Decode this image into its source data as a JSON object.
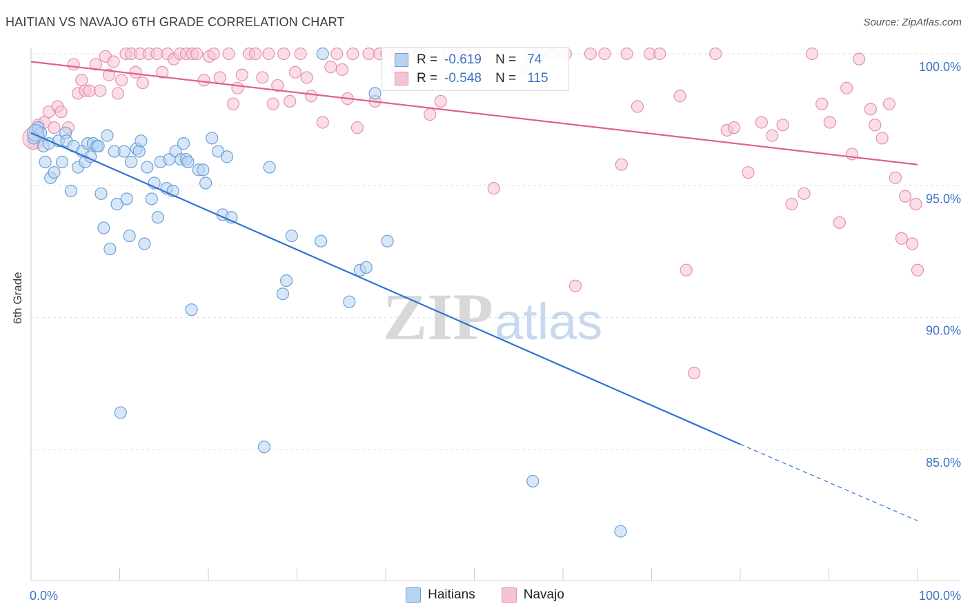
{
  "title": "HAITIAN VS NAVAJO 6TH GRADE CORRELATION CHART",
  "source": "Source: ZipAtlas.com",
  "watermark": {
    "zip": "ZIP",
    "atlas": "atlas"
  },
  "colors": {
    "haitians_fill": "#b8d3f2",
    "haitians_stroke": "#6b9fd8",
    "haitians_line": "#2e72d2",
    "navajo_fill": "#f6c3d3",
    "navajo_stroke": "#e590ad",
    "navajo_line": "#e0608c",
    "tick_text": "#3a72c4",
    "grid": "#e0e0e0"
  },
  "legend": {
    "rows": [
      {
        "label": "R =",
        "r": "-0.619",
        "n_label": "N =",
        "n": "74"
      },
      {
        "label": "R =",
        "r": "-0.548",
        "n_label": "N =",
        "n": "115"
      }
    ]
  },
  "bottom_legend": [
    "Haitians",
    "Navajo"
  ],
  "chart_data": {
    "type": "scatter",
    "xlabel": "",
    "ylabel": "6th Grade",
    "x_ticks": [
      "0.0%",
      "100.0%"
    ],
    "y_ticks": [
      "100.0%",
      "95.0%",
      "90.0%",
      "85.0%"
    ],
    "xlim": [
      0,
      100
    ],
    "ylim": [
      80.7,
      100.3
    ],
    "grid": true,
    "series": [
      {
        "name": "Haitians",
        "R": -0.619,
        "N": 74,
        "trend": {
          "x0": 0,
          "y0": 97.0,
          "x1": 80,
          "y1": 85.2,
          "dashed_to_x": 100,
          "dashed_to_y": 82.3
        },
        "points": [
          [
            0.5,
            97.1
          ],
          [
            0.8,
            97.2
          ],
          [
            1.1,
            97.0
          ],
          [
            1.4,
            96.5
          ],
          [
            1.6,
            95.9
          ],
          [
            2.2,
            95.3
          ],
          [
            2.6,
            95.5
          ],
          [
            3.1,
            96.7
          ],
          [
            3.5,
            95.9
          ],
          [
            3.9,
            97.0
          ],
          [
            4.0,
            96.7
          ],
          [
            4.5,
            94.8
          ],
          [
            4.8,
            96.5
          ],
          [
            5.3,
            95.7
          ],
          [
            5.8,
            96.3
          ],
          [
            6.1,
            95.9
          ],
          [
            6.4,
            96.6
          ],
          [
            6.7,
            96.1
          ],
          [
            7.0,
            96.6
          ],
          [
            7.4,
            96.5
          ],
          [
            7.6,
            96.5
          ],
          [
            7.9,
            94.7
          ],
          [
            8.2,
            93.4
          ],
          [
            8.6,
            96.9
          ],
          [
            8.9,
            92.6
          ],
          [
            9.4,
            96.3
          ],
          [
            9.7,
            94.3
          ],
          [
            10.1,
            86.4
          ],
          [
            10.5,
            96.3
          ],
          [
            10.8,
            94.5
          ],
          [
            11.1,
            93.1
          ],
          [
            11.3,
            95.9
          ],
          [
            11.9,
            96.4
          ],
          [
            12.2,
            96.3
          ],
          [
            12.4,
            96.7
          ],
          [
            12.8,
            92.8
          ],
          [
            13.1,
            95.7
          ],
          [
            13.6,
            94.5
          ],
          [
            13.9,
            95.1
          ],
          [
            14.3,
            93.8
          ],
          [
            14.6,
            95.9
          ],
          [
            15.3,
            94.9
          ],
          [
            15.6,
            96.0
          ],
          [
            16.0,
            94.8
          ],
          [
            16.3,
            96.3
          ],
          [
            16.9,
            96.0
          ],
          [
            17.2,
            96.6
          ],
          [
            17.5,
            96.0
          ],
          [
            17.7,
            95.9
          ],
          [
            18.1,
            90.3
          ],
          [
            18.9,
            95.6
          ],
          [
            19.4,
            95.6
          ],
          [
            19.7,
            95.1
          ],
          [
            20.4,
            96.8
          ],
          [
            21.1,
            96.3
          ],
          [
            21.6,
            93.9
          ],
          [
            22.1,
            96.1
          ],
          [
            22.6,
            93.8
          ],
          [
            26.3,
            85.1
          ],
          [
            26.9,
            95.7
          ],
          [
            28.4,
            90.9
          ],
          [
            28.8,
            91.4
          ],
          [
            29.4,
            93.1
          ],
          [
            32.7,
            92.9
          ],
          [
            32.9,
            100.0
          ],
          [
            35.9,
            90.6
          ],
          [
            37.1,
            91.8
          ],
          [
            37.8,
            91.9
          ],
          [
            38.8,
            98.5
          ],
          [
            40.2,
            92.9
          ],
          [
            56.6,
            83.8
          ],
          [
            66.5,
            81.9
          ],
          [
            0.3,
            96.8
          ],
          [
            2.0,
            96.6
          ]
        ]
      },
      {
        "name": "Navajo",
        "R": -0.548,
        "N": 115,
        "trend": {
          "x0": 0,
          "y0": 99.7,
          "x1": 100,
          "y1": 95.8
        },
        "points": [
          [
            0.3,
            96.6
          ],
          [
            0.8,
            97.3
          ],
          [
            1.5,
            97.4
          ],
          [
            2.0,
            97.8
          ],
          [
            2.6,
            97.2
          ],
          [
            3.0,
            98.0
          ],
          [
            3.4,
            97.8
          ],
          [
            4.2,
            97.2
          ],
          [
            4.8,
            99.6
          ],
          [
            5.3,
            98.5
          ],
          [
            5.7,
            99.0
          ],
          [
            6.1,
            98.6
          ],
          [
            6.6,
            98.6
          ],
          [
            7.3,
            99.6
          ],
          [
            7.8,
            98.6
          ],
          [
            8.4,
            99.9
          ],
          [
            8.8,
            99.2
          ],
          [
            9.3,
            99.7
          ],
          [
            9.8,
            98.5
          ],
          [
            10.2,
            99.0
          ],
          [
            10.7,
            100.0
          ],
          [
            11.3,
            100.0
          ],
          [
            11.8,
            99.3
          ],
          [
            12.3,
            100.0
          ],
          [
            12.6,
            98.9
          ],
          [
            13.3,
            100.0
          ],
          [
            14.2,
            100.0
          ],
          [
            14.8,
            99.3
          ],
          [
            15.4,
            100.0
          ],
          [
            16.1,
            99.8
          ],
          [
            16.8,
            100.0
          ],
          [
            17.5,
            100.0
          ],
          [
            18.2,
            100.0
          ],
          [
            18.7,
            100.0
          ],
          [
            19.5,
            99.0
          ],
          [
            20.1,
            99.9
          ],
          [
            20.6,
            100.0
          ],
          [
            21.3,
            99.1
          ],
          [
            22.3,
            100.0
          ],
          [
            22.8,
            98.1
          ],
          [
            23.3,
            98.7
          ],
          [
            23.8,
            99.2
          ],
          [
            24.6,
            100.0
          ],
          [
            25.3,
            100.0
          ],
          [
            26.1,
            99.1
          ],
          [
            26.8,
            100.0
          ],
          [
            27.3,
            98.1
          ],
          [
            27.8,
            98.8
          ],
          [
            28.5,
            100.0
          ],
          [
            29.2,
            98.2
          ],
          [
            29.8,
            99.3
          ],
          [
            30.4,
            100.0
          ],
          [
            31.1,
            99.1
          ],
          [
            31.6,
            98.4
          ],
          [
            32.9,
            97.4
          ],
          [
            33.8,
            99.5
          ],
          [
            34.5,
            100.0
          ],
          [
            35.1,
            99.4
          ],
          [
            35.7,
            98.3
          ],
          [
            36.3,
            100.0
          ],
          [
            36.8,
            97.2
          ],
          [
            38.1,
            100.0
          ],
          [
            38.8,
            98.2
          ],
          [
            39.3,
            100.0
          ],
          [
            40.1,
            100.0
          ],
          [
            41.3,
            99.4
          ],
          [
            42.1,
            100.0
          ],
          [
            42.8,
            100.0
          ],
          [
            43.9,
            100.0
          ],
          [
            45.0,
            97.7
          ],
          [
            46.2,
            98.2
          ],
          [
            47.1,
            100.0
          ],
          [
            48.2,
            100.0
          ],
          [
            49.9,
            100.0
          ],
          [
            52.2,
            94.9
          ],
          [
            55.8,
            99.4
          ],
          [
            56.4,
            100.0
          ],
          [
            57.3,
            100.0
          ],
          [
            58.8,
            100.0
          ],
          [
            60.3,
            100.0
          ],
          [
            61.4,
            91.2
          ],
          [
            63.1,
            100.0
          ],
          [
            64.7,
            100.0
          ],
          [
            66.6,
            95.8
          ],
          [
            67.2,
            100.0
          ],
          [
            68.4,
            98.0
          ],
          [
            69.8,
            100.0
          ],
          [
            70.9,
            100.0
          ],
          [
            73.2,
            98.4
          ],
          [
            73.9,
            91.8
          ],
          [
            74.8,
            87.9
          ],
          [
            77.2,
            100.0
          ],
          [
            78.5,
            97.1
          ],
          [
            79.3,
            97.2
          ],
          [
            80.9,
            95.5
          ],
          [
            82.4,
            97.4
          ],
          [
            83.6,
            96.9
          ],
          [
            84.8,
            97.3
          ],
          [
            85.8,
            94.3
          ],
          [
            87.2,
            94.7
          ],
          [
            88.1,
            100.0
          ],
          [
            89.2,
            98.1
          ],
          [
            90.1,
            97.4
          ],
          [
            91.2,
            93.6
          ],
          [
            92.0,
            98.7
          ],
          [
            92.6,
            96.2
          ],
          [
            93.4,
            99.8
          ],
          [
            94.7,
            97.9
          ],
          [
            95.2,
            97.3
          ],
          [
            96.0,
            96.8
          ],
          [
            96.8,
            98.1
          ],
          [
            97.5,
            95.3
          ],
          [
            98.2,
            93.0
          ],
          [
            98.6,
            94.6
          ],
          [
            99.4,
            92.8
          ],
          [
            99.8,
            94.3
          ],
          [
            100.0,
            91.8
          ]
        ]
      }
    ]
  }
}
